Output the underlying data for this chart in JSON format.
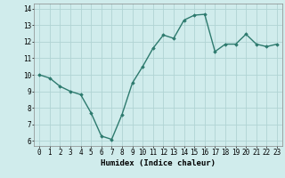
{
  "x": [
    0,
    1,
    2,
    3,
    4,
    5,
    6,
    7,
    8,
    9,
    10,
    11,
    12,
    13,
    14,
    15,
    16,
    17,
    18,
    19,
    20,
    21,
    22,
    23
  ],
  "y": [
    10.0,
    9.8,
    9.3,
    9.0,
    8.8,
    7.7,
    6.3,
    6.1,
    7.6,
    9.5,
    10.5,
    11.6,
    12.4,
    12.2,
    13.3,
    13.6,
    13.65,
    11.4,
    11.85,
    11.85,
    12.45,
    11.85,
    11.7,
    11.85
  ],
  "line_color": "#2d7a6e",
  "bg_color": "#d0ecec",
  "grid_color": "#b0d4d4",
  "ylabel_min": 6,
  "ylabel_max": 14,
  "xlabel": "Humidex (Indice chaleur)",
  "marker": "D",
  "marker_size": 1.8,
  "linewidth": 1.0,
  "tick_fontsize": 5.5,
  "xlabel_fontsize": 6.5
}
